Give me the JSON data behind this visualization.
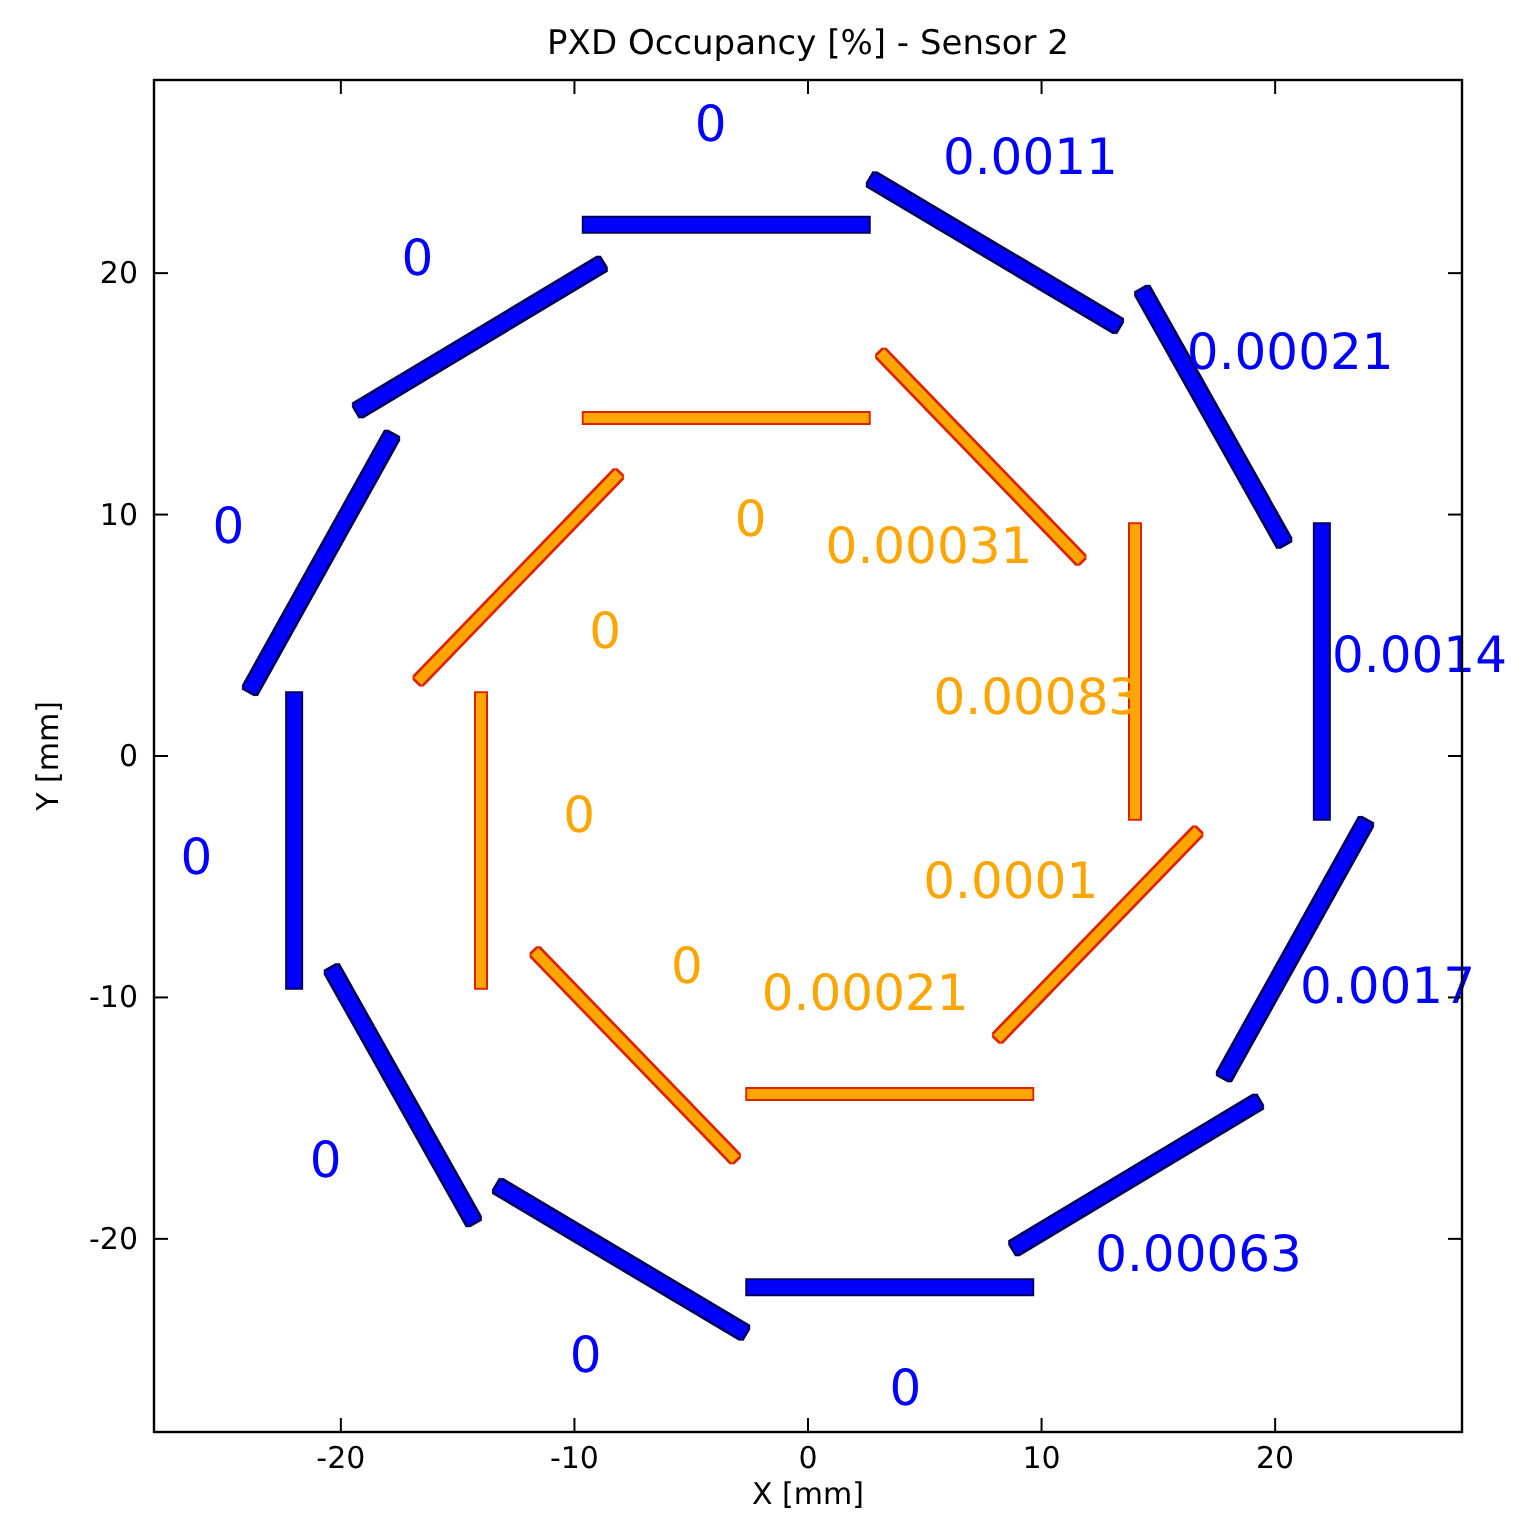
{
  "chart_data": {
    "type": "line",
    "title": "PXD Occupancy [%] - Sensor 2",
    "xlabel": "X [mm]",
    "ylabel": "Y [mm]",
    "xlim": [
      -28,
      28
    ],
    "ylim": [
      -28,
      28
    ],
    "xticks": [
      -20,
      -10,
      0,
      10,
      20
    ],
    "yticks": [
      -20,
      -10,
      0,
      10,
      20
    ],
    "grid": false,
    "marker": "none",
    "series": [
      {
        "color": "#0000ff",
        "x": [
          22,
          22
        ],
        "values": [
          -2.6,
          9.6
        ]
      },
      {
        "color": "#0000ff",
        "x": [
          20.4,
          14.3
        ],
        "values": [
          8.8,
          19.3
        ]
      },
      {
        "color": "#0000ff",
        "x": [
          13.3,
          2.7
        ],
        "values": [
          17.8,
          23.9
        ]
      },
      {
        "color": "#0000ff",
        "x": [
          2.6,
          -9.6
        ],
        "values": [
          22,
          22
        ]
      },
      {
        "color": "#0000ff",
        "x": [
          -8.8,
          -19.3
        ],
        "values": [
          20.4,
          14.3
        ]
      },
      {
        "color": "#0000ff",
        "x": [
          -17.8,
          -23.9
        ],
        "values": [
          13.3,
          2.7
        ]
      },
      {
        "color": "#0000ff",
        "x": [
          -22,
          -22
        ],
        "values": [
          2.6,
          -9.6
        ]
      },
      {
        "color": "#0000ff",
        "x": [
          -20.4,
          -14.3
        ],
        "values": [
          -8.8,
          -19.3
        ]
      },
      {
        "color": "#0000ff",
        "x": [
          -13.3,
          -2.7
        ],
        "values": [
          -17.8,
          -23.9
        ]
      },
      {
        "color": "#0000ff",
        "x": [
          -2.6,
          9.6
        ],
        "values": [
          -22,
          -22
        ]
      },
      {
        "color": "#0000ff",
        "x": [
          8.8,
          19.3
        ],
        "values": [
          -20.4,
          -14.3
        ]
      },
      {
        "color": "#0000ff",
        "x": [
          17.8,
          23.9
        ],
        "values": [
          -13.3,
          -2.7
        ]
      },
      {
        "color": "#ffa500",
        "x": [
          14,
          14
        ],
        "values": [
          -2.6,
          9.6
        ]
      },
      {
        "color": "#ffa500",
        "x": [
          11.7,
          3.1
        ],
        "values": [
          8.1,
          16.7
        ]
      },
      {
        "color": "#ffa500",
        "x": [
          2.6,
          -9.6
        ],
        "values": [
          14,
          14
        ]
      },
      {
        "color": "#ffa500",
        "x": [
          -8.1,
          -16.7
        ],
        "values": [
          11.7,
          3.1
        ]
      },
      {
        "color": "#ffa500",
        "x": [
          -14,
          -14
        ],
        "values": [
          2.6,
          -9.6
        ]
      },
      {
        "color": "#ffa500",
        "x": [
          -11.7,
          -3.1
        ],
        "values": [
          -8.1,
          -16.7
        ]
      },
      {
        "color": "#ffa500",
        "x": [
          -2.6,
          9.6
        ],
        "values": [
          -14,
          -14
        ]
      },
      {
        "color": "#ffa500",
        "x": [
          8.1,
          16.7
        ],
        "values": [
          -11.7,
          -3.1
        ]
      }
    ],
    "annotations": [
      "0.0014",
      "0.00021",
      "0.0011",
      "0",
      "0",
      "0",
      "0",
      "0",
      "0",
      "0",
      "0.00063",
      "0.0017",
      "0.00083",
      "0.00031",
      "0",
      "0",
      "0",
      "0",
      "0.00021",
      "0.0001"
    ]
  }
}
